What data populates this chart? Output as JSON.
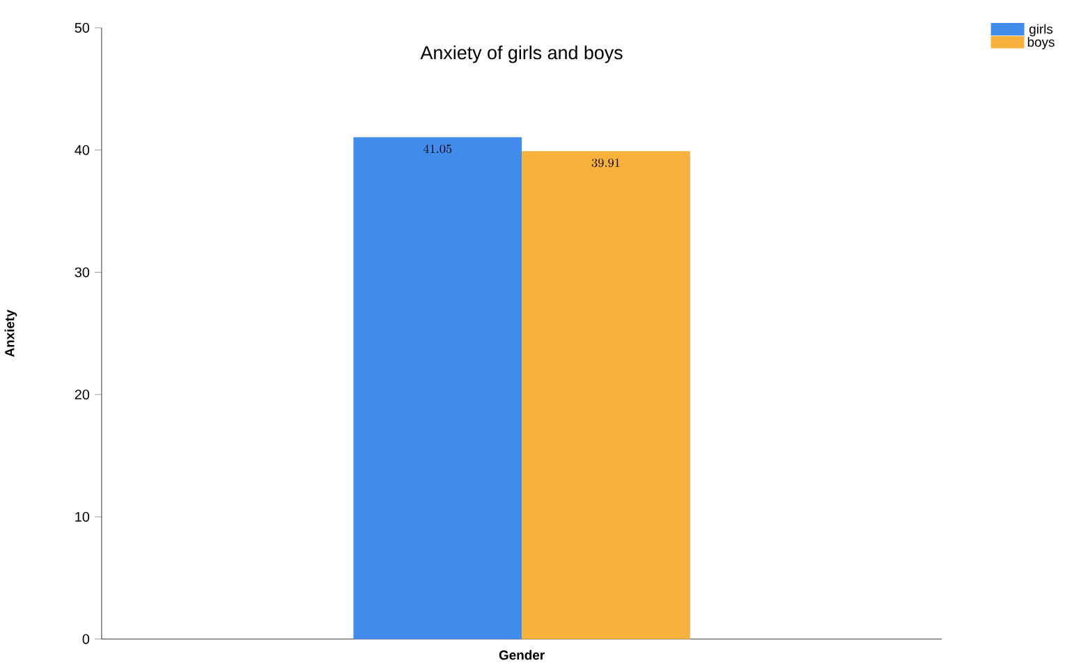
{
  "chart_data": {
    "type": "bar",
    "title": "Anxiety of girls and boys",
    "xlabel": "Gender",
    "ylabel": "Anxiety",
    "categories": [
      null
    ],
    "series": [
      {
        "name": "girls",
        "color": "#428cee",
        "values": [
          41.05
        ]
      },
      {
        "name": "boys",
        "color": "#f9b13e",
        "values": [
          39.91
        ]
      }
    ],
    "ylim": [
      0,
      50
    ],
    "yticks": [
      0,
      10,
      20,
      30,
      40,
      50
    ],
    "data_labels": true,
    "legend": "top right",
    "grid": false
  }
}
